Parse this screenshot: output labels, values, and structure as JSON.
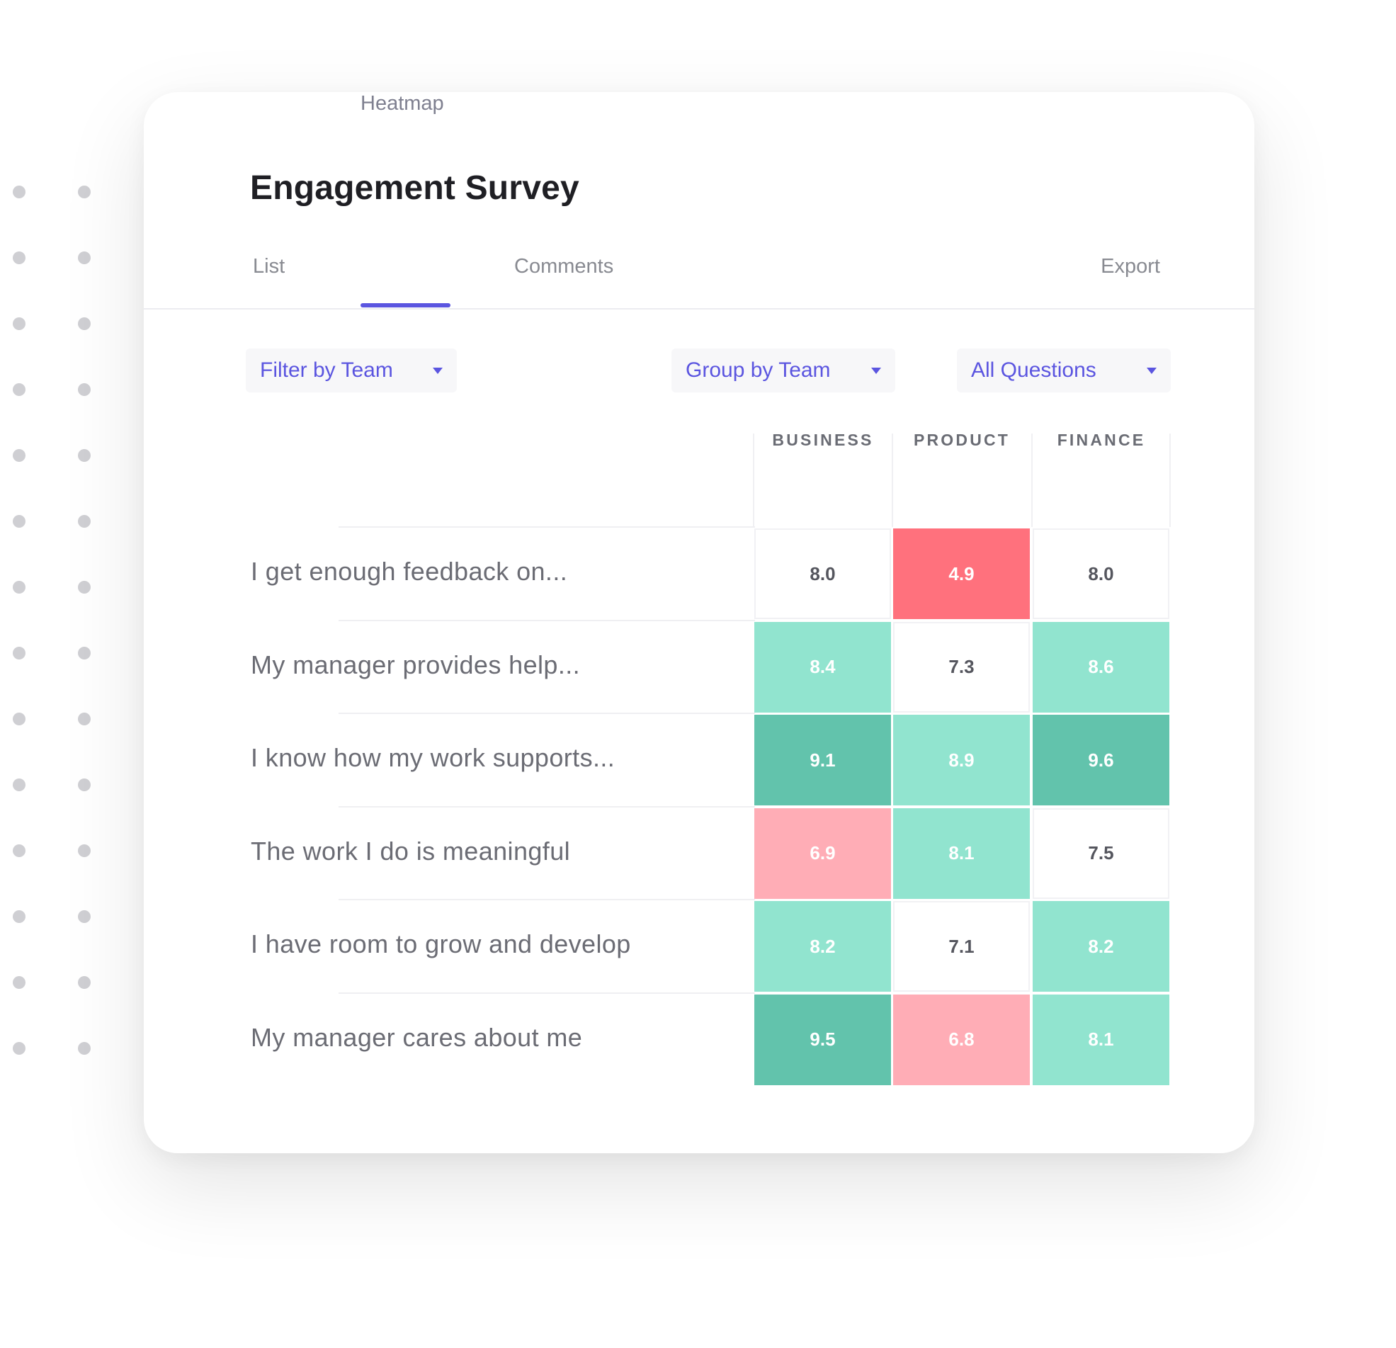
{
  "survey": {
    "title": "Engagement Survey"
  },
  "tabs": [
    {
      "label": "List",
      "active": false
    },
    {
      "label": "Heatmap",
      "active": true
    },
    {
      "label": "Comments",
      "active": false
    }
  ],
  "export_label": "Export",
  "filters": {
    "filter_by": "Filter by Team",
    "group_by": "Group by Team",
    "questions": "All Questions"
  },
  "heatmap": {
    "columns": [
      "BUSINESS",
      "PRODUCT",
      "FINANCE"
    ],
    "rows": [
      {
        "label": "I get enough feedback on...",
        "values": [
          "8.0",
          "4.9",
          "8.0"
        ]
      },
      {
        "label": "My manager provides help...",
        "values": [
          "8.4",
          "7.3",
          "8.6"
        ]
      },
      {
        "label": "I know how my work supports...",
        "values": [
          "9.1",
          "8.9",
          "9.6"
        ]
      },
      {
        "label": "The work I do is meaningful",
        "values": [
          "6.9",
          "8.1",
          "7.5"
        ]
      },
      {
        "label": "I have room to grow and develop",
        "values": [
          "8.2",
          "7.1",
          "8.2"
        ]
      },
      {
        "label": "My manager cares about me",
        "values": [
          "9.5",
          "6.8",
          "8.1"
        ]
      }
    ],
    "colors": {
      "strong_positive": "#62c3ac",
      "positive": "#91e4cf",
      "negative": "#ffadb6",
      "strong_negative": "#ff717d",
      "neutral": "#ffffff",
      "accent": "#5b55e0"
    }
  }
}
